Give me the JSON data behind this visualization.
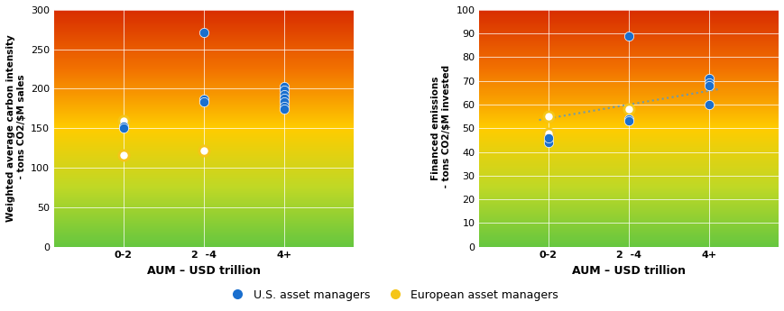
{
  "chart1": {
    "ylabel": "Weighted average carbon intensity\n - tons CO2/$M sales",
    "xlabel": "AUM – USD trillion",
    "xlim": [
      0.2,
      2.8
    ],
    "ylim": [
      0,
      300
    ],
    "yticks": [
      0,
      50,
      100,
      150,
      200,
      250,
      300
    ],
    "xtick_labels": [
      "0-2",
      "2  -4",
      "4+"
    ],
    "xtick_pos": [
      0.8,
      1.5,
      2.2
    ],
    "us_points": [
      [
        0.8,
        153
      ],
      [
        0.8,
        150
      ],
      [
        1.5,
        271
      ],
      [
        1.5,
        187
      ],
      [
        1.5,
        184
      ],
      [
        2.2,
        203
      ],
      [
        2.2,
        198
      ],
      [
        2.2,
        193
      ],
      [
        2.2,
        188
      ],
      [
        2.2,
        183
      ],
      [
        2.2,
        178
      ],
      [
        2.2,
        174
      ]
    ],
    "eu_points": [
      [
        0.8,
        160
      ],
      [
        0.8,
        116
      ],
      [
        1.5,
        122
      ]
    ]
  },
  "chart2": {
    "ylabel": "Financed emissions\n - tons CO2/$M invested",
    "xlabel": "AUM – USD trillion",
    "xlim": [
      0.2,
      2.8
    ],
    "ylim": [
      0,
      100
    ],
    "yticks": [
      0,
      10,
      20,
      30,
      40,
      50,
      60,
      70,
      80,
      90,
      100
    ],
    "xtick_labels": [
      "0-2",
      "2  -4",
      "4+"
    ],
    "xtick_pos": [
      0.8,
      1.5,
      2.2
    ],
    "us_points": [
      [
        0.8,
        44
      ],
      [
        0.8,
        46
      ],
      [
        1.5,
        89
      ],
      [
        1.5,
        54
      ],
      [
        1.5,
        53
      ],
      [
        2.2,
        71
      ],
      [
        2.2,
        69
      ],
      [
        2.2,
        68
      ],
      [
        2.2,
        60
      ]
    ],
    "eu_points": [
      [
        0.8,
        55
      ],
      [
        0.8,
        48
      ],
      [
        1.5,
        58
      ]
    ],
    "trendline": {
      "x": [
        0.72,
        2.28
      ],
      "y": [
        53.5,
        66.5
      ]
    }
  },
  "us_color": "#1a6fce",
  "eu_color": "#f5c518",
  "gradient_colors": [
    "#5cb85c",
    "#c8d400",
    "#f0a500",
    "#e84000"
  ],
  "legend": {
    "us_label": "U.S. asset managers",
    "eu_label": "European asset managers"
  }
}
